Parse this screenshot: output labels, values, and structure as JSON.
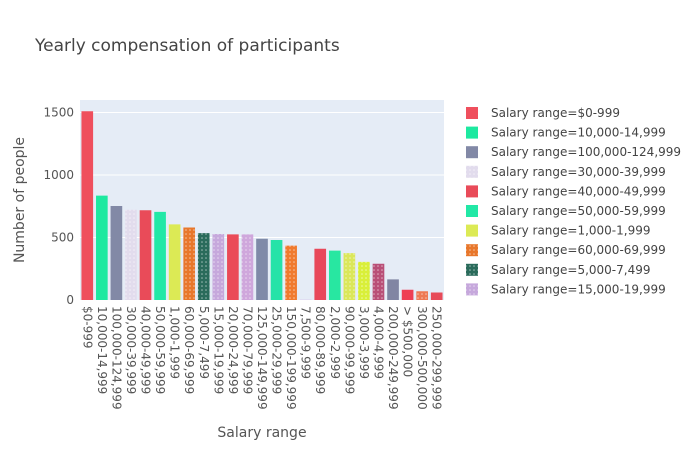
{
  "chart_data": {
    "type": "bar",
    "title": "Yearly compensation of participants",
    "xlabel": "Salary range",
    "ylabel": "Number of people",
    "legend_prefix": "Salary range=",
    "legend_position": "right",
    "ylim": [
      0,
      1600
    ],
    "yticks": [
      0,
      500,
      1000,
      1500
    ],
    "grid": true,
    "categories": [
      "$0-999",
      "10,000-14,999",
      "100,000-124,999",
      "30,000-39,999",
      "40,000-49,999",
      "50,000-59,999",
      "1,000-1,999",
      "60,000-69,999",
      "5,000-7,499",
      "15,000-19,999",
      "20,000-24,999",
      "70,000-79,999",
      "125,000-149,999",
      "25,000-29,999",
      "150,000-199,999",
      "7,500-9,999",
      "80,000-89,999",
      "2,000-2,999",
      "90,000-99,999",
      "3,000-3,999",
      "4,000-4,999",
      "200,000-249,999",
      "> $500,000",
      "300,000-500,000",
      "250,000-299,999"
    ],
    "values": [
      1510,
      835,
      752,
      722,
      718,
      705,
      605,
      580,
      535,
      528,
      525,
      525,
      490,
      480,
      435,
      2,
      410,
      395,
      375,
      305,
      290,
      165,
      82,
      70,
      60
    ],
    "colors": [
      "#ef4f5d",
      "#1de9a0",
      "#8289a6",
      "#e2dced",
      "#e94b59",
      "#22e8a6",
      "#dcea55",
      "#e8772b",
      "#2a6b5b",
      "#c6a8dc",
      "#ea4b58",
      "#cfa7dc",
      "#7f8aa8",
      "#26e3a8",
      "#f07a2e",
      "#cfb7e6",
      "#e8485a",
      "#28e7a1",
      "#dbe75a",
      "#d9ef39",
      "#b94f77",
      "#8185a3",
      "#ee3f54",
      "#ee7a54",
      "#e74b59"
    ],
    "patterned_indices": [
      3,
      7,
      8,
      9,
      11,
      14,
      15,
      18,
      19,
      20,
      23
    ],
    "legend_entries": [
      "$0-999",
      "10,000-14,999",
      "100,000-124,999",
      "30,000-39,999",
      "40,000-49,999",
      "50,000-59,999",
      "1,000-1,999",
      "60,000-69,999",
      "5,000-7,499",
      "15,000-19,999"
    ],
    "legend_colors": [
      "#ef4f5d",
      "#1de9a0",
      "#8289a6",
      "#e2dced",
      "#e94b59",
      "#22e8a6",
      "#dcea55",
      "#e8772b",
      "#2a6b5b",
      "#c6a8dc"
    ],
    "plot_bg": "#e5ecf6"
  }
}
